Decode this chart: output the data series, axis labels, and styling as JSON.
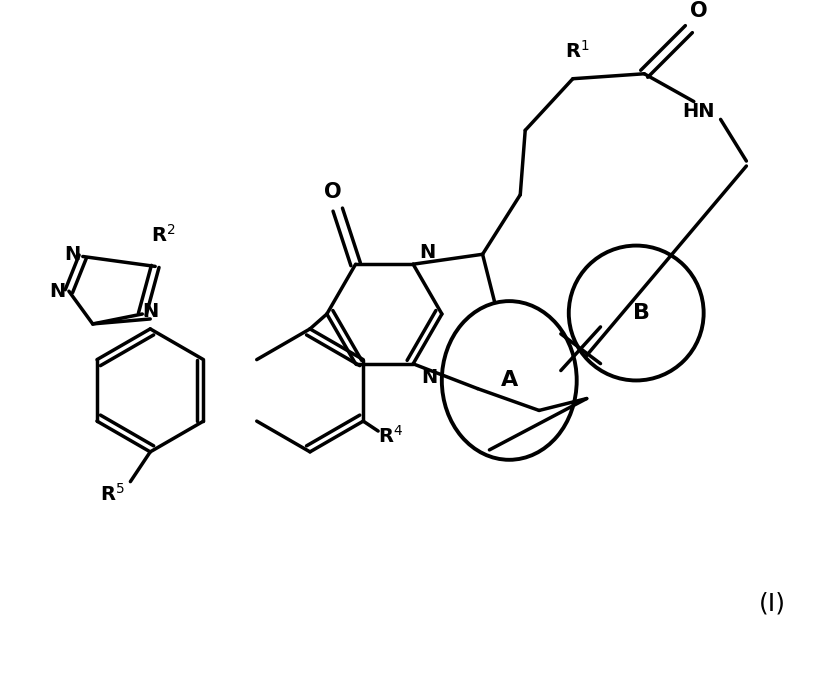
{
  "background_color": "#ffffff",
  "line_color": "#000000",
  "line_width": 2.5,
  "label_I": "(I)",
  "label_A": "A",
  "label_B": "B"
}
